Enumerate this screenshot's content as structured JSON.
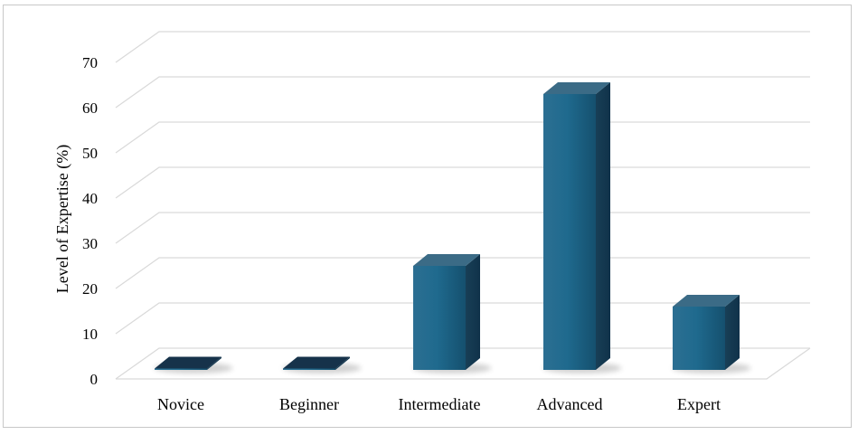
{
  "chart_data": {
    "type": "bar",
    "categories": [
      "Novice",
      "Beginner",
      "Intermediate",
      "Advanced",
      "Expert"
    ],
    "values": [
      0,
      0,
      23,
      61,
      14
    ],
    "ylabel": "Level of Expertise  (%)",
    "xlabel": "",
    "ylim": [
      0,
      70
    ],
    "yticks": [
      0,
      10,
      20,
      30,
      40,
      50,
      60,
      70
    ],
    "grid": true,
    "style": "3d-column",
    "colors": {
      "bar": "#1e6a8e",
      "bar_top": "#3b6b86",
      "bar_side": "#143f57",
      "grid": "#d9d9d9"
    }
  }
}
